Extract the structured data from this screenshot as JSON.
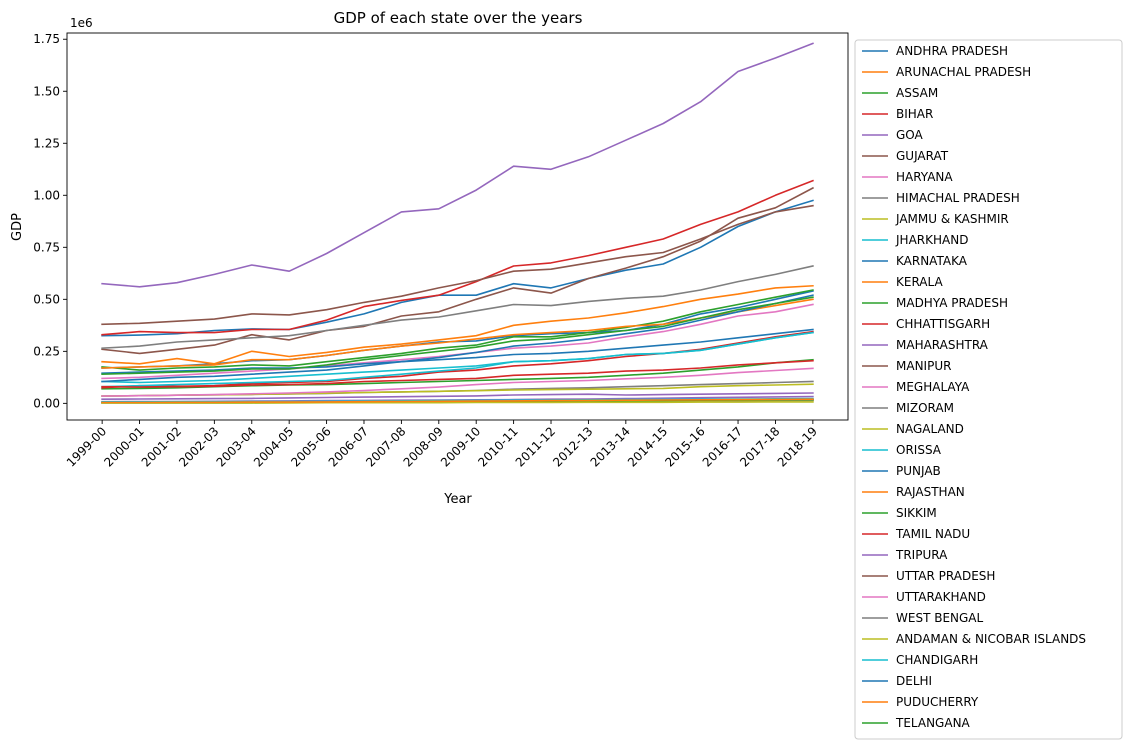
{
  "chart_data": {
    "type": "line",
    "title": "GDP of each state over the years",
    "xlabel": "Year",
    "ylabel": "GDP",
    "y_scale_label": "1e6",
    "ylim": [
      -0.08,
      1.78
    ],
    "y_unit_multiplier": 1000000,
    "y_ticks": [
      0.0,
      0.25,
      0.5,
      0.75,
      1.0,
      1.25,
      1.5,
      1.75
    ],
    "y_tick_labels": [
      "0.00",
      "0.25",
      "0.50",
      "0.75",
      "1.00",
      "1.25",
      "1.50",
      "1.75"
    ],
    "grid": false,
    "legend_position": "outside-right",
    "categories": [
      "1999-00",
      "2000-01",
      "2001-02",
      "2002-03",
      "2003-04",
      "2004-05",
      "2005-06",
      "2006-07",
      "2007-08",
      "2008-09",
      "2009-10",
      "2010-11",
      "2011-12",
      "2012-13",
      "2013-14",
      "2014-15",
      "2015-16",
      "2016-17",
      "2017-18",
      "2018-19"
    ],
    "series": [
      {
        "name": "ANDHRA PRADESH",
        "color": "#1f77b4",
        "values": [
          0.325,
          0.328,
          0.335,
          0.35,
          0.358,
          0.355,
          0.39,
          0.43,
          0.485,
          0.52,
          0.52,
          0.575,
          0.555,
          0.6,
          0.64,
          0.67,
          0.75,
          0.85,
          0.92,
          0.975
        ]
      },
      {
        "name": "ARUNACHAL PRADESH",
        "color": "#ff7f0e",
        "values": [
          0.003,
          0.003,
          0.003,
          0.003,
          0.004,
          0.004,
          0.004,
          0.005,
          0.005,
          0.006,
          0.007,
          0.008,
          0.009,
          0.01,
          0.011,
          0.012,
          0.013,
          0.015,
          0.016,
          0.017
        ]
      },
      {
        "name": "ASSAM",
        "color": "#2ca02c",
        "values": [
          0.07,
          0.072,
          0.075,
          0.08,
          0.085,
          0.088,
          0.09,
          0.095,
          0.1,
          0.105,
          0.11,
          0.115,
          0.12,
          0.125,
          0.135,
          0.145,
          0.16,
          0.175,
          0.195,
          0.21
        ]
      },
      {
        "name": "BIHAR",
        "color": "#d62728",
        "values": [
          0.075,
          0.085,
          0.082,
          0.085,
          0.095,
          0.1,
          0.105,
          0.12,
          0.13,
          0.15,
          0.16,
          0.18,
          0.19,
          0.205,
          0.225,
          0.24,
          0.26,
          0.29,
          0.32,
          0.345
        ]
      },
      {
        "name": "GOA",
        "color": "#9467bd",
        "values": [
          0.02,
          0.021,
          0.022,
          0.023,
          0.024,
          0.026,
          0.028,
          0.03,
          0.032,
          0.034,
          0.036,
          0.04,
          0.042,
          0.044,
          0.04,
          0.042,
          0.044,
          0.046,
          0.048,
          0.05
        ]
      },
      {
        "name": "GUJARAT",
        "color": "#8c564b",
        "values": [
          0.26,
          0.24,
          0.26,
          0.28,
          0.33,
          0.305,
          0.35,
          0.37,
          0.42,
          0.44,
          0.5,
          0.555,
          0.53,
          0.6,
          0.65,
          0.705,
          0.78,
          0.89,
          0.94,
          1.035
        ]
      },
      {
        "name": "HARYANA",
        "color": "#e377c2",
        "values": [
          0.12,
          0.125,
          0.135,
          0.145,
          0.155,
          0.165,
          0.18,
          0.195,
          0.21,
          0.225,
          0.245,
          0.265,
          0.275,
          0.29,
          0.32,
          0.345,
          0.38,
          0.42,
          0.44,
          0.475
        ]
      },
      {
        "name": "HIMACHAL PRADESH",
        "color": "#7f7f7f",
        "values": [
          0.035,
          0.037,
          0.039,
          0.041,
          0.043,
          0.045,
          0.048,
          0.052,
          0.055,
          0.058,
          0.062,
          0.068,
          0.072,
          0.075,
          0.08,
          0.085,
          0.09,
          0.095,
          0.1,
          0.105
        ]
      },
      {
        "name": "JAMMU & KASHMIR",
        "color": "#bcbd22",
        "values": [
          0.035,
          0.037,
          0.039,
          0.041,
          0.043,
          0.046,
          0.049,
          0.052,
          0.055,
          0.058,
          0.061,
          0.064,
          0.066,
          0.068,
          0.07,
          0.072,
          0.08,
          0.085,
          0.088,
          0.092
        ]
      },
      {
        "name": "JHARKHAND",
        "color": "#17becf",
        "values": [
          0.08,
          0.085,
          0.09,
          0.095,
          0.1,
          0.105,
          0.11,
          0.125,
          0.14,
          0.155,
          0.17,
          0.2,
          0.205,
          0.215,
          0.235,
          0.24,
          0.255,
          0.285,
          0.315,
          0.34
        ]
      },
      {
        "name": "KARNATAKA",
        "color": "#1f77b4",
        "values": [
          0.17,
          0.175,
          0.18,
          0.19,
          0.205,
          0.21,
          0.23,
          0.255,
          0.275,
          0.295,
          0.3,
          0.325,
          0.335,
          0.34,
          0.35,
          0.38,
          0.43,
          0.46,
          0.5,
          0.54
        ]
      },
      {
        "name": "KERALA",
        "color": "#ff7f0e",
        "values": [
          0.2,
          0.19,
          0.215,
          0.19,
          0.25,
          0.225,
          0.245,
          0.27,
          0.285,
          0.305,
          0.325,
          0.375,
          0.395,
          0.41,
          0.435,
          0.465,
          0.5,
          0.525,
          0.555,
          0.565
        ]
      },
      {
        "name": "MADHYA PRADESH",
        "color": "#2ca02c",
        "values": [
          0.175,
          0.16,
          0.17,
          0.175,
          0.185,
          0.18,
          0.2,
          0.22,
          0.24,
          0.265,
          0.28,
          0.32,
          0.32,
          0.34,
          0.365,
          0.395,
          0.44,
          0.475,
          0.51,
          0.545
        ]
      },
      {
        "name": "CHHATTISGARH",
        "color": "#d62728",
        "values": [
          0.08,
          0.078,
          0.08,
          0.082,
          0.088,
          0.09,
          0.095,
          0.105,
          0.11,
          0.115,
          0.12,
          0.135,
          0.14,
          0.145,
          0.155,
          0.16,
          0.17,
          0.185,
          0.195,
          0.205
        ]
      },
      {
        "name": "MAHARASHTRA",
        "color": "#9467bd",
        "values": [
          0.575,
          0.56,
          0.58,
          0.62,
          0.665,
          0.635,
          0.72,
          0.82,
          0.92,
          0.935,
          1.025,
          1.14,
          1.125,
          1.185,
          1.265,
          1.345,
          1.45,
          1.595,
          1.66,
          1.73
        ]
      },
      {
        "name": "MANIPUR",
        "color": "#8c564b",
        "values": [
          0.005,
          0.005,
          0.006,
          0.006,
          0.006,
          0.007,
          0.007,
          0.008,
          0.008,
          0.009,
          0.009,
          0.01,
          0.011,
          0.011,
          0.012,
          0.013,
          0.014,
          0.015,
          0.016,
          0.017
        ]
      },
      {
        "name": "MEGHALAYA",
        "color": "#e377c2",
        "values": [
          0.006,
          0.006,
          0.007,
          0.007,
          0.008,
          0.008,
          0.009,
          0.009,
          0.01,
          0.011,
          0.012,
          0.013,
          0.014,
          0.015,
          0.016,
          0.017,
          0.018,
          0.019,
          0.02,
          0.021
        ]
      },
      {
        "name": "MIZORAM",
        "color": "#7f7f7f",
        "values": [
          0.003,
          0.003,
          0.003,
          0.003,
          0.004,
          0.004,
          0.004,
          0.005,
          0.005,
          0.006,
          0.006,
          0.007,
          0.008,
          0.008,
          0.009,
          0.01,
          0.011,
          0.012,
          0.013,
          0.014
        ]
      },
      {
        "name": "NAGALAND",
        "color": "#bcbd22",
        "values": [
          0.005,
          0.005,
          0.006,
          0.006,
          0.006,
          0.007,
          0.007,
          0.008,
          0.008,
          0.009,
          0.009,
          0.01,
          0.011,
          0.012,
          0.012,
          0.013,
          0.014,
          0.015,
          0.016,
          0.017
        ]
      },
      {
        "name": "ORISSA",
        "color": "#17becf",
        "values": [
          0.105,
          0.1,
          0.105,
          0.11,
          0.12,
          0.13,
          0.14,
          0.15,
          0.16,
          0.17,
          0.18,
          0.2,
          0.205,
          0.215,
          0.235,
          0.24,
          0.255,
          0.285,
          0.315,
          0.34
        ]
      },
      {
        "name": "PUNJAB",
        "color": "#1f77b4",
        "values": [
          0.145,
          0.15,
          0.155,
          0.16,
          0.17,
          0.17,
          0.175,
          0.19,
          0.2,
          0.21,
          0.22,
          0.235,
          0.24,
          0.25,
          0.265,
          0.28,
          0.295,
          0.315,
          0.335,
          0.355
        ]
      },
      {
        "name": "RAJASTHAN",
        "color": "#ff7f0e",
        "values": [
          0.17,
          0.175,
          0.18,
          0.185,
          0.21,
          0.21,
          0.23,
          0.255,
          0.275,
          0.29,
          0.31,
          0.33,
          0.34,
          0.35,
          0.37,
          0.38,
          0.41,
          0.44,
          0.47,
          0.5
        ]
      },
      {
        "name": "SIKKIM",
        "color": "#2ca02c",
        "values": [
          0.002,
          0.002,
          0.002,
          0.002,
          0.002,
          0.003,
          0.003,
          0.003,
          0.004,
          0.006,
          0.008,
          0.01,
          0.011,
          0.012,
          0.013,
          0.014,
          0.015,
          0.016,
          0.017,
          0.018
        ]
      },
      {
        "name": "TAMIL NADU",
        "color": "#d62728",
        "values": [
          0.33,
          0.345,
          0.34,
          0.34,
          0.355,
          0.355,
          0.4,
          0.465,
          0.495,
          0.52,
          0.585,
          0.66,
          0.675,
          0.71,
          0.75,
          0.79,
          0.86,
          0.92,
          1.0,
          1.07
        ]
      },
      {
        "name": "TRIPURA",
        "color": "#9467bd",
        "values": [
          0.008,
          0.009,
          0.009,
          0.01,
          0.011,
          0.012,
          0.013,
          0.014,
          0.015,
          0.016,
          0.017,
          0.018,
          0.02,
          0.021,
          0.023,
          0.025,
          0.027,
          0.029,
          0.031,
          0.033
        ]
      },
      {
        "name": "UTTAR PRADESH",
        "color": "#8c564b",
        "values": [
          0.38,
          0.385,
          0.395,
          0.405,
          0.43,
          0.425,
          0.45,
          0.485,
          0.515,
          0.555,
          0.59,
          0.635,
          0.645,
          0.675,
          0.705,
          0.725,
          0.79,
          0.86,
          0.92,
          0.95
        ]
      },
      {
        "name": "UTTARAKHAND",
        "color": "#e377c2",
        "values": [
          0.035,
          0.037,
          0.039,
          0.042,
          0.046,
          0.05,
          0.055,
          0.062,
          0.07,
          0.078,
          0.09,
          0.1,
          0.105,
          0.11,
          0.118,
          0.125,
          0.135,
          0.148,
          0.158,
          0.168
        ]
      },
      {
        "name": "WEST BENGAL",
        "color": "#7f7f7f",
        "values": [
          0.265,
          0.275,
          0.295,
          0.305,
          0.315,
          0.325,
          0.35,
          0.375,
          0.4,
          0.415,
          0.445,
          0.475,
          0.47,
          0.49,
          0.505,
          0.515,
          0.545,
          0.585,
          0.62,
          0.66
        ]
      },
      {
        "name": "ANDAMAN & NICOBAR ISLANDS",
        "color": "#bcbd22",
        "values": [
          0.002,
          0.002,
          0.002,
          0.002,
          0.002,
          0.002,
          0.003,
          0.003,
          0.003,
          0.003,
          0.004,
          0.004,
          0.004,
          0.005,
          0.005,
          0.005,
          0.006,
          0.006,
          0.007,
          0.007
        ]
      },
      {
        "name": "CHANDIGARH",
        "color": "#17becf",
        "values": [
          0.007,
          0.007,
          0.008,
          0.008,
          0.009,
          0.009,
          0.01,
          0.011,
          0.012,
          0.013,
          0.014,
          0.015,
          0.016,
          0.017,
          0.018,
          0.019,
          0.02,
          0.021,
          0.022,
          0.023
        ]
      },
      {
        "name": "DELHI",
        "color": "#1f77b4",
        "values": [
          0.105,
          0.115,
          0.125,
          0.13,
          0.14,
          0.15,
          0.16,
          0.18,
          0.2,
          0.22,
          0.245,
          0.275,
          0.29,
          0.31,
          0.335,
          0.36,
          0.4,
          0.44,
          0.48,
          0.52
        ]
      },
      {
        "name": "PUDUCHERRY",
        "color": "#ff7f0e",
        "values": [
          0.004,
          0.004,
          0.005,
          0.005,
          0.006,
          0.006,
          0.007,
          0.008,
          0.009,
          0.01,
          0.011,
          0.012,
          0.013,
          0.014,
          0.015,
          0.016,
          0.017,
          0.018,
          0.019,
          0.02
        ]
      },
      {
        "name": "TELANGANA",
        "color": "#2ca02c",
        "values": [
          0.14,
          0.145,
          0.15,
          0.155,
          0.165,
          0.165,
          0.185,
          0.21,
          0.23,
          0.25,
          0.27,
          0.3,
          0.31,
          0.33,
          0.35,
          0.37,
          0.41,
          0.45,
          0.48,
          0.51
        ]
      }
    ]
  }
}
